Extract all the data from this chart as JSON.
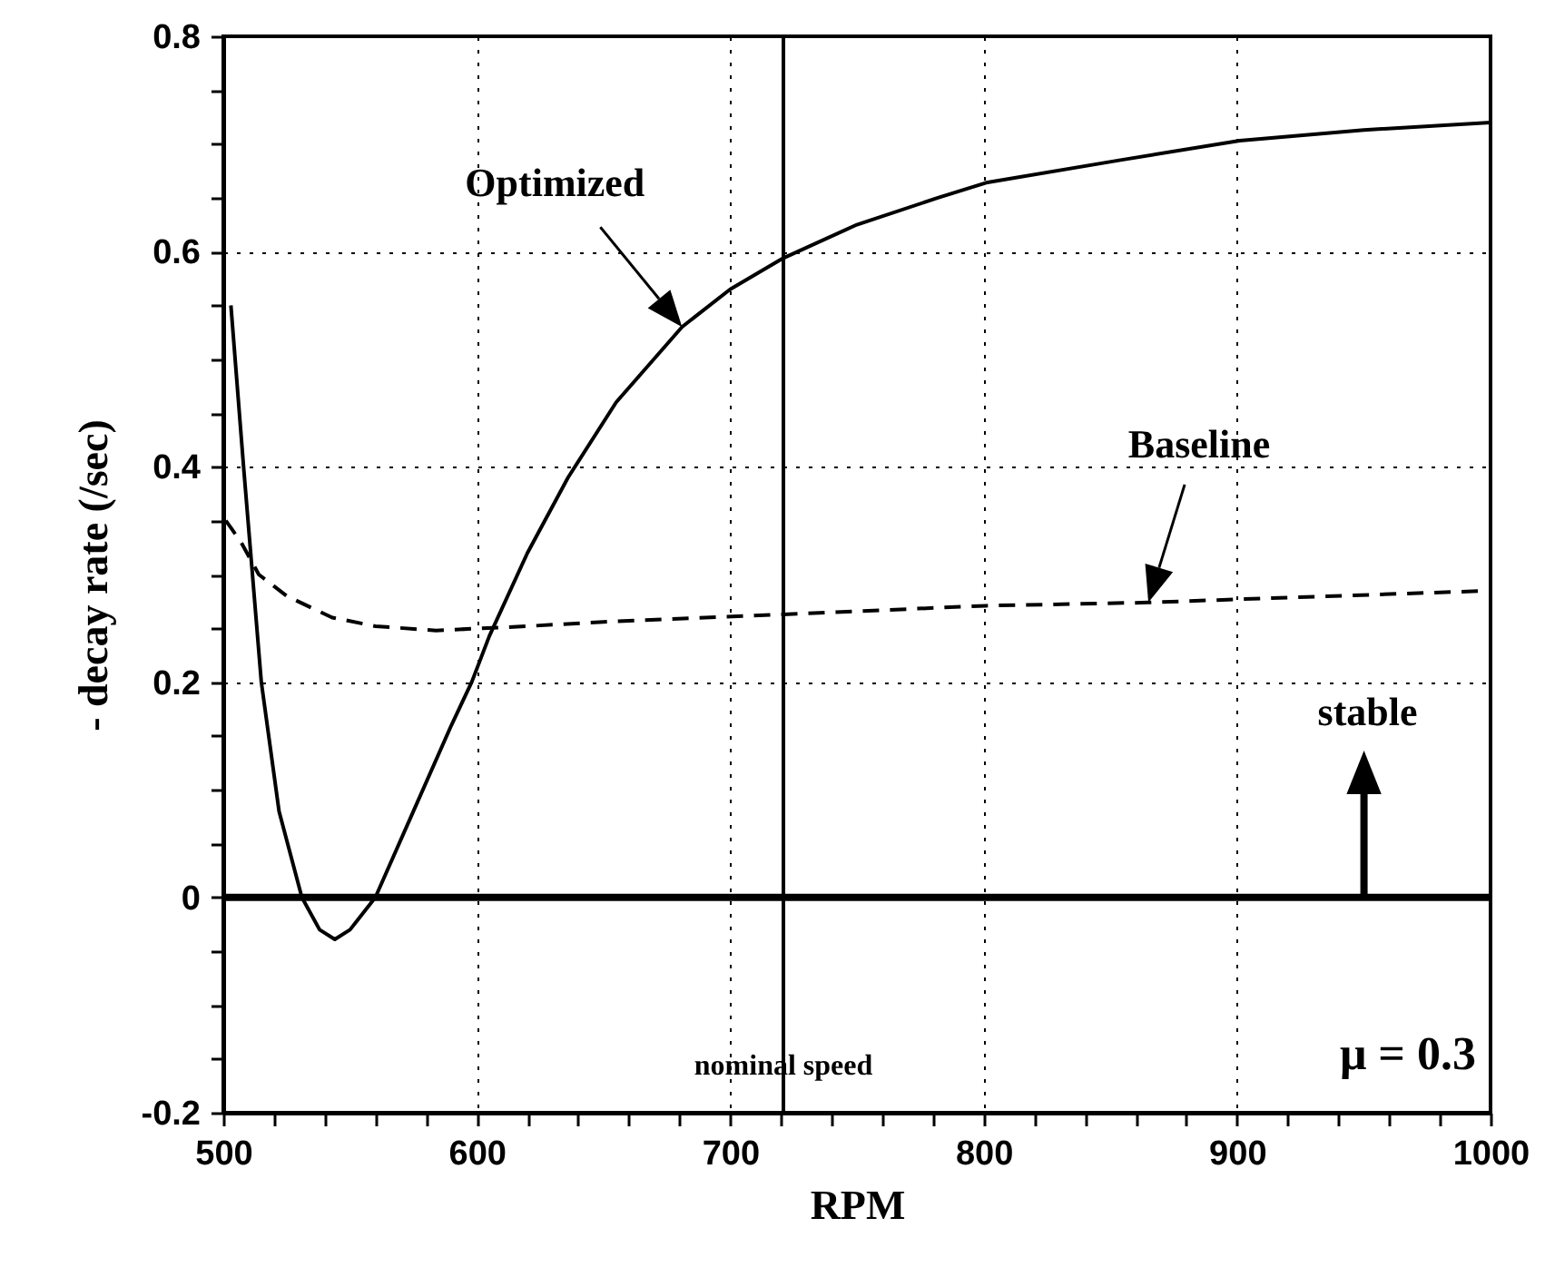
{
  "chart_data": {
    "type": "line",
    "xlabel": "RPM",
    "ylabel": "- decay rate (/sec)",
    "series": [
      {
        "name": "Optimized",
        "color": "#000000",
        "line_style": "solid",
        "x": [
          503,
          508,
          515,
          522,
          531,
          538,
          544,
          550,
          560,
          575,
          590,
          598,
          605,
          620,
          636,
          655,
          681,
          700,
          721,
          750,
          782,
          801,
          854,
          901,
          950,
          1000
        ],
        "values": [
          0.55,
          0.4,
          0.2,
          0.08,
          0,
          -0.03,
          -0.039,
          -0.03,
          0,
          0.08,
          0.16,
          0.2,
          0.243,
          0.32,
          0.39,
          0.46,
          0.53,
          0.565,
          0.594,
          0.625,
          0.65,
          0.664,
          0.685,
          0.703,
          0.713,
          0.72
        ]
      },
      {
        "name": "Baseline",
        "color": "#000000",
        "line_style": "dashed",
        "x": [
          501,
          507,
          514,
          525,
          543,
          560,
          584,
          620,
          650,
          721,
          801,
          865,
          901,
          1000
        ],
        "values": [
          0.35,
          0.33,
          0.3,
          0.28,
          0.26,
          0.252,
          0.248,
          0.252,
          0.256,
          0.263,
          0.271,
          0.274,
          0.277,
          0.285
        ]
      }
    ],
    "xlim": [
      500,
      1000
    ],
    "xticks": [
      500,
      {
        "value": 520,
        "label": null
      },
      {
        "value": 540,
        "label": null
      },
      {
        "value": 560,
        "label": null
      },
      {
        "value": 580,
        "label": null
      },
      600,
      {
        "value": 620,
        "label": null
      },
      {
        "value": 640,
        "label": null
      },
      {
        "value": 660,
        "label": null
      },
      {
        "value": 680,
        "label": null
      },
      700,
      {
        "value": 720,
        "label": null
      },
      {
        "value": 740,
        "label": null
      },
      {
        "value": 760,
        "label": null
      },
      {
        "value": 780,
        "label": null
      },
      800,
      {
        "value": 820,
        "label": null
      },
      {
        "value": 840,
        "label": null
      },
      {
        "value": 860,
        "label": null
      },
      {
        "value": 880,
        "label": null
      },
      900,
      {
        "value": 920,
        "label": null
      },
      {
        "value": 940,
        "label": null
      },
      {
        "value": 960,
        "label": null
      },
      {
        "value": 980,
        "label": null
      },
      1000
    ],
    "ylim": [
      -0.2,
      0.8
    ],
    "yticks": [
      -0.2,
      {
        "value": -0.15,
        "label": null
      },
      {
        "value": -0.1,
        "label": null
      },
      {
        "value": -0.05,
        "label": null
      },
      0,
      {
        "value": 0.05,
        "label": null
      },
      {
        "value": 0.1,
        "label": null
      },
      {
        "value": 0.15,
        "label": null
      },
      0.2,
      {
        "value": 0.25,
        "label": null
      },
      {
        "value": 0.3,
        "label": null
      },
      {
        "value": 0.35,
        "label": null
      },
      0.4,
      {
        "value": 0.45,
        "label": null
      },
      {
        "value": 0.5,
        "label": null
      },
      {
        "value": 0.55,
        "label": null
      },
      0.6,
      {
        "value": 0.65,
        "label": null
      },
      {
        "value": 0.7,
        "label": null
      },
      {
        "value": 0.75,
        "label": null
      },
      0.8
    ],
    "grid": true,
    "ref_lines": [
      {
        "axis": "y",
        "value": 0,
        "color": "#000000",
        "line_style": "solid"
      },
      {
        "axis": "x",
        "value": 721,
        "label": "nominal speed",
        "color": "#000000",
        "line_style": "solid"
      }
    ],
    "annotations": [
      "stable",
      "μ = 0.3"
    ]
  }
}
